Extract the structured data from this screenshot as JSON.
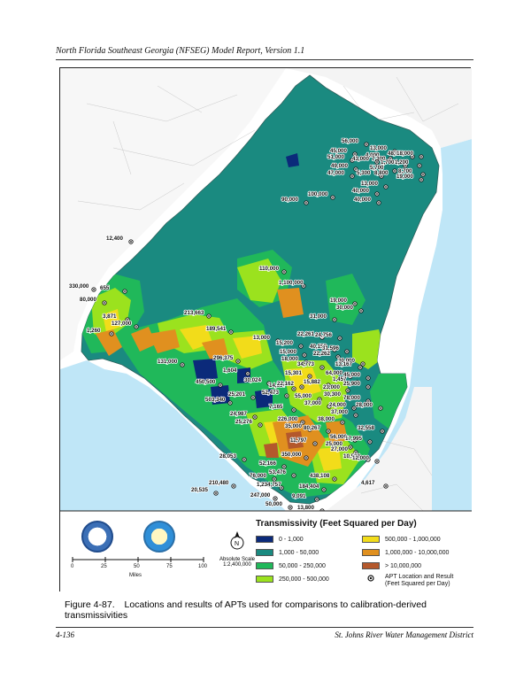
{
  "header": {
    "title": "North Florida Southeast Georgia (NFSEG) Model Report, Version 1.1"
  },
  "map": {
    "legend": {
      "title": "Transmissivity (Feet Squared per Day)",
      "classes": [
        {
          "label": "0 - 1,000",
          "color": "#0b2a7a"
        },
        {
          "label": "1,000 - 50,000",
          "color": "#1a8a80"
        },
        {
          "label": "50,000 - 250,000",
          "color": "#20b85a"
        },
        {
          "label": "250,000 - 500,000",
          "color": "#9be21e"
        },
        {
          "label": "500,000 - 1,000,000",
          "color": "#f2dc1a"
        },
        {
          "label": "1,000,000 - 10,000,000",
          "color": "#e0901f"
        },
        {
          "label": "> 10,000,000",
          "color": "#b4582c"
        }
      ],
      "apt_label": "APT Location and Result",
      "apt_label_2": "(Feet Squared per Day)"
    },
    "scale": {
      "ticks": [
        "0",
        "25",
        "50",
        "75",
        "100"
      ],
      "unit": "Miles",
      "absolute_label": "Absolute Scale",
      "absolute_value": "1:2,400,000",
      "north_icon": "north-arrow-icon"
    },
    "logos": [
      "sjrwmd-logo",
      "srwmd-logo"
    ],
    "apt_labels": [
      "56,000",
      "45,000",
      "13,000",
      "51,000",
      "48,000",
      "4,000",
      "18,000",
      "7,300",
      "43,000",
      "1,700",
      "1,200",
      "49,000",
      "5,700",
      "8,700",
      "47,000",
      "5,300",
      "8,800",
      "19,000",
      "13,000",
      "40,000",
      "100,000",
      "90,000",
      "40,000",
      "12,400",
      "330,000",
      "655",
      "80,000",
      "3,871",
      "1,260",
      "127,000",
      "213,663",
      "110,000",
      "1,100,000",
      "19,000",
      "30,000",
      "31,000",
      "189,541",
      "13,000",
      "22,261",
      "15,200",
      "24,756",
      "15,000",
      "40,158",
      "31,596",
      "18,000",
      "22,262",
      "131,000",
      "296,375",
      "30,000",
      "34,773",
      "13,167",
      "1,604",
      "15,301",
      "64,000",
      "1,457",
      "45,000",
      "450,500",
      "30,024",
      "14,637",
      "22,162",
      "15,882",
      "23,000",
      "30,300",
      "25,900",
      "503,340",
      "25,201",
      "52,473",
      "55,000",
      "37,000",
      "78,000",
      "28,000",
      "7,165",
      "24,000",
      "37,000",
      "24,987",
      "226,000",
      "25,276",
      "35,000",
      "38,000",
      "32,558",
      "80,267",
      "56,000",
      "17,995",
      "11,797",
      "25,000",
      "27,000",
      "350,000",
      "10,503",
      "12,000",
      "28,053",
      "52,166",
      "53,476",
      "438,108",
      "4,617",
      "76,000",
      "210,480",
      "1,234,757",
      "184,404",
      "20,535",
      "247,000",
      "9,091",
      "50,000",
      "13,800"
    ]
  },
  "caption": {
    "number": "Figure 4-87.",
    "text": "Locations and results of APTs used for comparisons to calibration-derived transmissivities"
  },
  "footer": {
    "page": "4-136",
    "org": "St. Johns River Water Management District"
  }
}
